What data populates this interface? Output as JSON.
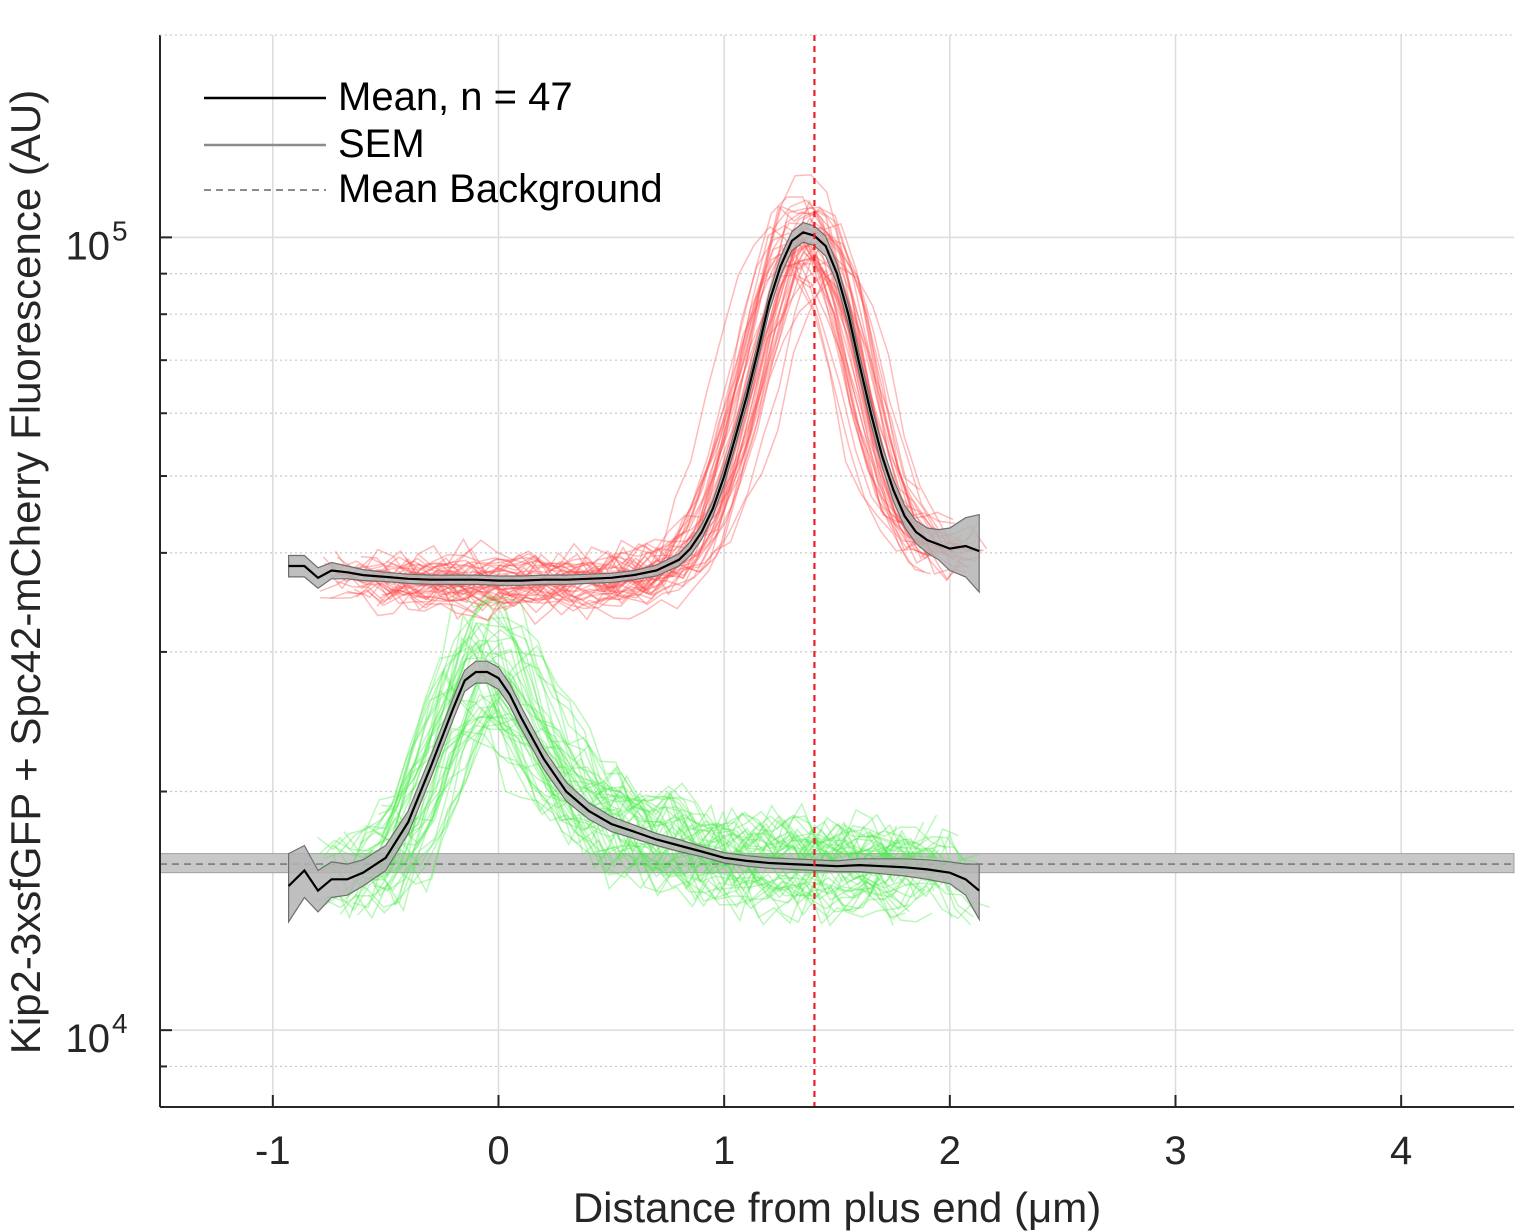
{
  "chart_data": {
    "type": "line",
    "xlabel": "Distance from plus end (μm)",
    "ylabel": "Kip2-3xsfGFP + Spc42-mCherry Fluorescence (AU)",
    "xlim": [
      -1.5,
      4.5
    ],
    "ylim": [
      8000,
      180000
    ],
    "yscale": "log",
    "grid": true,
    "minor_grid": true,
    "x_ticks": [
      -1,
      0,
      1,
      2,
      3,
      4
    ],
    "x_tick_labels": [
      "-1",
      "0",
      "1",
      "2",
      "3",
      "4"
    ],
    "y_ticks": [
      10000,
      100000
    ],
    "y_tick_labels": [
      {
        "base": "10",
        "exp": "4"
      },
      {
        "base": "10",
        "exp": "5"
      }
    ],
    "legend": {
      "position": "top-left",
      "entries": [
        {
          "label": "Mean, n = 47",
          "style": "solid",
          "color": "#000000"
        },
        {
          "label": "SEM",
          "style": "solid",
          "color": "#8c8c8c"
        },
        {
          "label": "Mean Background",
          "style": "dashed",
          "color": "#8c8c8c"
        }
      ]
    },
    "colors": {
      "red_traces": "#ff4d4d",
      "green_traces": "#4ded4d",
      "mean": "#000000",
      "sem_fill": "#b4b4b4",
      "background_band": "#c8c8c8",
      "background_line": "#7a7a7a",
      "marker_line": "#e8202a"
    },
    "reference_line_x": 1.4,
    "background_mean": 16200,
    "background_band": [
      15800,
      16700
    ],
    "n_traces": 47,
    "series": [
      {
        "id": "mcherry-mean",
        "x": [
          -0.93,
          -0.86,
          -0.8,
          -0.74,
          -0.67,
          -0.6,
          -0.5,
          -0.4,
          -0.3,
          -0.2,
          -0.1,
          0,
          0.1,
          0.2,
          0.3,
          0.4,
          0.5,
          0.6,
          0.7,
          0.8,
          0.85,
          0.9,
          0.95,
          1.0,
          1.05,
          1.1,
          1.15,
          1.2,
          1.25,
          1.3,
          1.35,
          1.4,
          1.45,
          1.5,
          1.55,
          1.6,
          1.65,
          1.7,
          1.75,
          1.8,
          1.85,
          1.9,
          1.95,
          2.0,
          2.07,
          2.13
        ],
        "y": [
          38500,
          38500,
          37200,
          38000,
          37800,
          37500,
          37300,
          37100,
          37000,
          37000,
          37000,
          36900,
          36900,
          37000,
          37000,
          37100,
          37200,
          37500,
          38000,
          39200,
          40500,
          42500,
          45500,
          50000,
          56000,
          63000,
          72000,
          83000,
          92000,
          99000,
          101500,
          100500,
          97500,
          90000,
          80000,
          69000,
          60000,
          53000,
          48000,
          44500,
          42500,
          41500,
          41000,
          40500,
          40800,
          40200
        ],
        "sem": [
          1200,
          1200,
          1100,
          900,
          700,
          600,
          500,
          500,
          500,
          500,
          500,
          500,
          500,
          500,
          500,
          500,
          500,
          500,
          600,
          700,
          800,
          900,
          1000,
          1200,
          1400,
          1600,
          1900,
          2200,
          2500,
          2700,
          2900,
          2900,
          2800,
          2600,
          2300,
          2000,
          1800,
          1600,
          1500,
          1400,
          1400,
          1500,
          1800,
          2500,
          3500,
          4500
        ]
      },
      {
        "id": "gfp-mean",
        "x": [
          -0.93,
          -0.86,
          -0.8,
          -0.74,
          -0.67,
          -0.6,
          -0.5,
          -0.4,
          -0.3,
          -0.2,
          -0.15,
          -0.1,
          -0.05,
          0,
          0.05,
          0.1,
          0.2,
          0.3,
          0.4,
          0.5,
          0.6,
          0.7,
          0.8,
          0.9,
          1.0,
          1.1,
          1.2,
          1.3,
          1.4,
          1.5,
          1.6,
          1.7,
          1.8,
          1.9,
          2.0,
          2.07,
          2.13
        ],
        "y": [
          15200,
          15900,
          15000,
          15500,
          15500,
          15800,
          16500,
          18300,
          21500,
          25500,
          27600,
          28300,
          28300,
          27800,
          26500,
          24800,
          22000,
          20000,
          18900,
          18200,
          17800,
          17400,
          17100,
          16800,
          16500,
          16350,
          16250,
          16200,
          16150,
          16100,
          16150,
          16100,
          16050,
          15950,
          15800,
          15500,
          15000
        ],
        "sem": [
          1500,
          1200,
          900,
          800,
          700,
          600,
          600,
          600,
          700,
          800,
          850,
          900,
          900,
          900,
          850,
          800,
          650,
          550,
          450,
          400,
          350,
          300,
          300,
          250,
          250,
          250,
          250,
          250,
          250,
          250,
          300,
          350,
          400,
          450,
          500,
          700,
          1200
        ]
      }
    ]
  }
}
